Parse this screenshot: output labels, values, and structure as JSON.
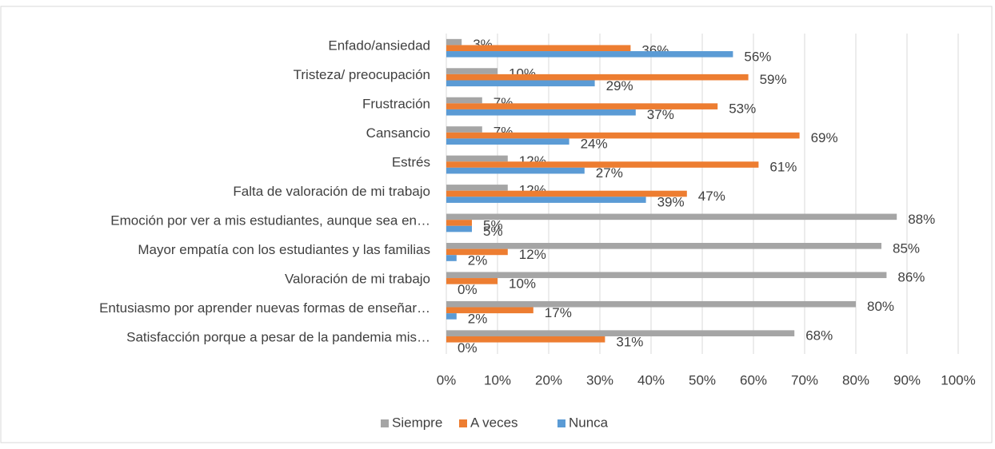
{
  "chart_data": {
    "type": "bar",
    "orientation": "horizontal",
    "categories": [
      "Enfado/ansiedad",
      "Tristeza/ preocupación",
      "Frustración",
      "Cansancio",
      "Estrés",
      "Falta de valoración de mi trabajo",
      "Emoción por ver a mis estudiantes, aunque sea en…",
      "Mayor empatía con los estudiantes y las familias",
      "Valoración de mi trabajo",
      "Entusiasmo por aprender nuevas formas de enseñar…",
      "Satisfacción porque a pesar de la pandemia mis…"
    ],
    "series": [
      {
        "name": "Siempre",
        "color": "#a5a5a5",
        "values": [
          3,
          10,
          7,
          7,
          12,
          12,
          88,
          85,
          86,
          80,
          68
        ],
        "value_labels": [
          "3%",
          "10%",
          "7%",
          "7%",
          "12%",
          "12%",
          "88%",
          "85%",
          "86%",
          "80%",
          "68%"
        ]
      },
      {
        "name": "A veces",
        "color": "#ed7d31",
        "values": [
          36,
          59,
          53,
          69,
          61,
          47,
          5,
          12,
          10,
          17,
          31
        ],
        "value_labels": [
          "36%",
          "59%",
          "53%",
          "69%",
          "61%",
          "47%",
          "5%",
          "12%",
          "10%",
          "17%",
          "31%"
        ]
      },
      {
        "name": "Nunca",
        "color": "#5b9bd5",
        "values": [
          56,
          29,
          37,
          24,
          27,
          39,
          5,
          2,
          0,
          2,
          0
        ],
        "value_labels": [
          "56%",
          "29%",
          "37%",
          "24%",
          "27%",
          "39%",
          "5%",
          "2%",
          "0%",
          "2%",
          "0%"
        ]
      }
    ],
    "xlim": [
      0,
      100
    ],
    "xticks": [
      {
        "value": 0,
        "label": "0%"
      },
      {
        "value": 10,
        "label": "10%"
      },
      {
        "value": 20,
        "label": "20%"
      },
      {
        "value": 30,
        "label": "30%"
      },
      {
        "value": 40,
        "label": "40%"
      },
      {
        "value": 50,
        "label": "50%"
      },
      {
        "value": 60,
        "label": "60%"
      },
      {
        "value": 70,
        "label": "70%"
      },
      {
        "value": 80,
        "label": "80%"
      },
      {
        "value": 90,
        "label": "90%"
      },
      {
        "value": 100,
        "label": "100%"
      }
    ],
    "grid": true,
    "legend": "bottom"
  }
}
